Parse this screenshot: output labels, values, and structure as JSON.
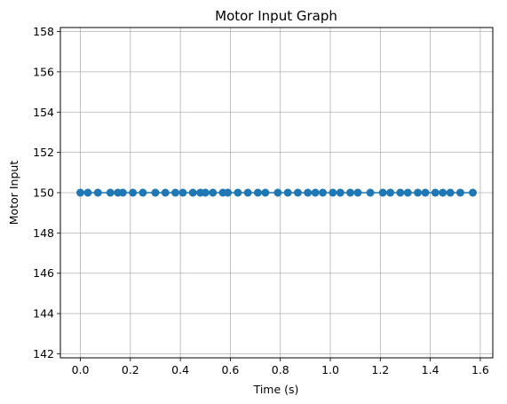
{
  "chart_data": {
    "type": "scatter",
    "title": "Motor Input Graph",
    "xlabel": "Time (s)",
    "ylabel": "Motor Input",
    "xlim": [
      -0.08,
      1.65
    ],
    "ylim": [
      141.8,
      158.2
    ],
    "xticks": [
      0.0,
      0.2,
      0.4,
      0.6,
      0.8,
      1.0,
      1.2,
      1.4,
      1.6
    ],
    "xtick_labels": [
      "0.0",
      "0.2",
      "0.4",
      "0.6",
      "0.8",
      "1.0",
      "1.2",
      "1.4",
      "1.6"
    ],
    "yticks": [
      142,
      144,
      146,
      148,
      150,
      152,
      154,
      156,
      158
    ],
    "ytick_labels": [
      "142",
      "144",
      "146",
      "148",
      "150",
      "152",
      "154",
      "156",
      "158"
    ],
    "grid": true,
    "line_style": "solid line with circle markers",
    "color": "#1f77b4",
    "series": [
      {
        "x": [
          0.0,
          0.03,
          0.07,
          0.12,
          0.15,
          0.17,
          0.21,
          0.25,
          0.3,
          0.34,
          0.38,
          0.41,
          0.45,
          0.48,
          0.5,
          0.53,
          0.57,
          0.59,
          0.63,
          0.67,
          0.71,
          0.74,
          0.79,
          0.83,
          0.87,
          0.91,
          0.94,
          0.97,
          1.01,
          1.04,
          1.08,
          1.11,
          1.16,
          1.21,
          1.24,
          1.28,
          1.31,
          1.35,
          1.38,
          1.42,
          1.45,
          1.48,
          1.52,
          1.57
        ],
        "y": [
          150,
          150,
          150,
          150,
          150,
          150,
          150,
          150,
          150,
          150,
          150,
          150,
          150,
          150,
          150,
          150,
          150,
          150,
          150,
          150,
          150,
          150,
          150,
          150,
          150,
          150,
          150,
          150,
          150,
          150,
          150,
          150,
          150,
          150,
          150,
          150,
          150,
          150,
          150,
          150,
          150,
          150,
          150,
          150
        ]
      }
    ]
  }
}
